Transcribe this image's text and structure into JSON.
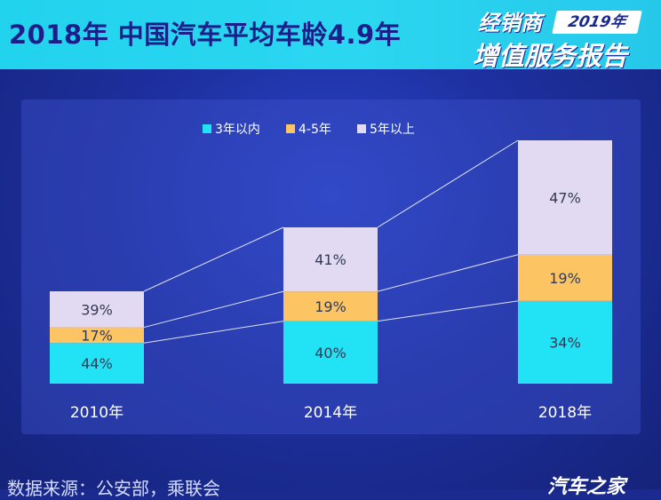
{
  "header": {
    "title": "2018年 中国汽车平均车龄4.9年",
    "badge_top": "经销商",
    "badge_year": "2019年",
    "badge_bottom": "增值服务报告"
  },
  "footer": {
    "source": "数据来源：公安部，乘联会",
    "brand": "汽车之家"
  },
  "colors": {
    "header_bg": "#22d3ee",
    "title_text": "#1a1f8a",
    "page_bg": "#1d2f9e",
    "cyan": "#22e3f5",
    "orange": "#fcc462",
    "lavender": "#e2d9f3"
  },
  "chart_data": {
    "type": "bar",
    "stacked": true,
    "categories": [
      "2010年",
      "2014年",
      "2018年"
    ],
    "series": [
      {
        "name": "3年以内",
        "color": "#22e3f5",
        "values": [
          44,
          40,
          34
        ],
        "labels": [
          "44%",
          "40%",
          "34%"
        ]
      },
      {
        "name": "4-5年",
        "color": "#fcc462",
        "values": [
          17,
          19,
          19
        ],
        "labels": [
          "17%",
          "19%",
          "19%"
        ]
      },
      {
        "name": "5年以上",
        "color": "#e2d9f3",
        "values": [
          39,
          41,
          47
        ],
        "labels": [
          "39%",
          "41%",
          "47%"
        ]
      }
    ],
    "legend_position": "top-center",
    "grid": false
  }
}
